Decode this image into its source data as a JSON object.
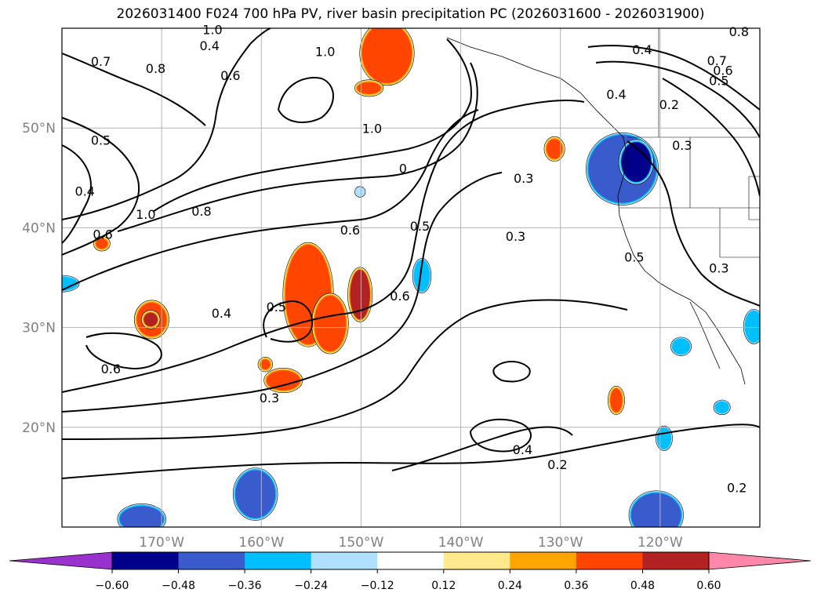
{
  "chart_data": {
    "type": "heatmap",
    "title": "2026031400 F024 700 hPa PV, river basin precipitation PC (2026031600 - 2026031900)",
    "lat_ticks": [
      "50°N",
      "40°N",
      "30°N",
      "20°N"
    ],
    "lat_values": [
      50,
      40,
      30,
      20
    ],
    "lon_ticks": [
      "170°W",
      "160°W",
      "150°W",
      "140°W",
      "130°W",
      "120°W"
    ],
    "lon_values": [
      -170,
      -160,
      -150,
      -140,
      -130,
      -120
    ],
    "extent": {
      "lon": [
        -180,
        -110
      ],
      "lat": [
        10,
        60
      ]
    },
    "grid": true,
    "colorbar": {
      "orientation": "horizontal",
      "extend": "both",
      "levels": [
        -0.6,
        -0.48,
        -0.36,
        -0.24,
        -0.12,
        0.12,
        0.24,
        0.36,
        0.48,
        0.6
      ],
      "tick_labels": [
        "−0.60",
        "−0.48",
        "−0.36",
        "−0.24",
        "−0.12",
        "0.12",
        "0.24",
        "0.36",
        "0.48",
        "0.60"
      ],
      "colors": [
        "#9932cc",
        "#00008b",
        "#3a5bcc",
        "#00bfff",
        "#b0e0ff",
        "#ffffff",
        "#ffe98c",
        "#ffa500",
        "#ff4500",
        "#b22222",
        "#ff88aa"
      ]
    },
    "contour_labels": [
      {
        "text": "0.7",
        "lon": -176.1,
        "lat": 56.6
      },
      {
        "text": "0.8",
        "lon": -170.6,
        "lat": 55.9
      },
      {
        "text": "0.4",
        "lon": -165.2,
        "lat": 58.2
      },
      {
        "text": "0.6",
        "lon": -163.1,
        "lat": 55.2
      },
      {
        "text": "1.0",
        "lon": -164.9,
        "lat": 59.8
      },
      {
        "text": "0.5",
        "lon": -176.1,
        "lat": 48.7
      },
      {
        "text": "0.4",
        "lon": -177.7,
        "lat": 43.6
      },
      {
        "text": "0.6",
        "lon": -175.9,
        "lat": 39.3
      },
      {
        "text": "1.0",
        "lon": -171.6,
        "lat": 41.3
      },
      {
        "text": "0.8",
        "lon": -166.0,
        "lat": 41.6
      },
      {
        "text": "1.0",
        "lon": -153.6,
        "lat": 57.6
      },
      {
        "text": "1.0",
        "lon": -148.9,
        "lat": 49.9
      },
      {
        "text": "0.",
        "lon": -145.6,
        "lat": 45.9
      },
      {
        "text": "0.6",
        "lon": -151.1,
        "lat": 39.7
      },
      {
        "text": "0.5",
        "lon": -144.1,
        "lat": 40.1
      },
      {
        "text": "0.6",
        "lon": -146.1,
        "lat": 33.1
      },
      {
        "text": "0.4",
        "lon": -164.0,
        "lat": 31.4
      },
      {
        "text": "0.5",
        "lon": -158.5,
        "lat": 32.0
      },
      {
        "text": "0.6",
        "lon": -175.1,
        "lat": 25.8
      },
      {
        "text": "0.3",
        "lon": -159.2,
        "lat": 22.9
      },
      {
        "text": "0.3",
        "lon": -133.7,
        "lat": 44.9
      },
      {
        "text": "0.3",
        "lon": -134.5,
        "lat": 39.1
      },
      {
        "text": "0.4",
        "lon": -133.8,
        "lat": 17.7
      },
      {
        "text": "0.2",
        "lon": -130.3,
        "lat": 16.2
      },
      {
        "text": "0.4",
        "lon": -121.8,
        "lat": 57.8
      },
      {
        "text": "0.4",
        "lon": -124.4,
        "lat": 53.3
      },
      {
        "text": "0.2",
        "lon": -119.1,
        "lat": 52.3
      },
      {
        "text": "0.7",
        "lon": -114.3,
        "lat": 56.7
      },
      {
        "text": "0.6",
        "lon": -113.7,
        "lat": 55.7
      },
      {
        "text": "0.5",
        "lon": -114.1,
        "lat": 54.7
      },
      {
        "text": "0.8",
        "lon": -112.1,
        "lat": 59.6
      },
      {
        "text": "0.3",
        "lon": -117.8,
        "lat": 48.2
      },
      {
        "text": "0.5",
        "lon": -122.6,
        "lat": 37.0
      },
      {
        "text": "0.3",
        "lon": -114.1,
        "lat": 35.9
      },
      {
        "text": "0.2",
        "lon": -112.3,
        "lat": 13.9
      }
    ],
    "precip_anomalies": [
      {
        "sign": "positive",
        "level": 0.36,
        "lon": -147.4,
        "lat": 57.5,
        "rx": 2.5,
        "ry": 3.0
      },
      {
        "sign": "positive",
        "level": 0.36,
        "lon": -149.2,
        "lat": 54.0,
        "rx": 1.2,
        "ry": 0.6
      },
      {
        "sign": "positive",
        "level": 0.36,
        "lon": -155.3,
        "lat": 33.3,
        "rx": 2.3,
        "ry": 5.0
      },
      {
        "sign": "positive",
        "level": 0.36,
        "lon": -153.1,
        "lat": 30.4,
        "rx": 1.6,
        "ry": 2.8
      },
      {
        "sign": "positive",
        "level": 0.48,
        "lon": -150.1,
        "lat": 33.3,
        "rx": 1.0,
        "ry": 2.5
      },
      {
        "sign": "positive",
        "level": 0.36,
        "lon": -171.0,
        "lat": 30.8,
        "rx": 1.5,
        "ry": 1.7
      },
      {
        "sign": "positive",
        "level": 0.48,
        "lon": -171.1,
        "lat": 30.8,
        "rx": 0.7,
        "ry": 0.7
      },
      {
        "sign": "positive",
        "level": 0.36,
        "lon": -157.8,
        "lat": 24.7,
        "rx": 1.7,
        "ry": 1.0
      },
      {
        "sign": "positive",
        "level": 0.36,
        "lon": -130.6,
        "lat": 47.9,
        "rx": 0.8,
        "ry": 1.0
      },
      {
        "sign": "positive",
        "level": 0.36,
        "lon": -124.4,
        "lat": 22.7,
        "rx": 0.6,
        "ry": 1.2
      },
      {
        "sign": "positive",
        "level": 0.36,
        "lon": -159.6,
        "lat": 26.3,
        "rx": 0.5,
        "ry": 0.5
      },
      {
        "sign": "positive",
        "level": 0.36,
        "lon": -176.0,
        "lat": 38.4,
        "rx": 0.6,
        "ry": 0.5
      },
      {
        "sign": "negative",
        "level": -0.48,
        "lon": -123.8,
        "lat": 45.9,
        "rx": 3.4,
        "ry": 3.4
      },
      {
        "sign": "negative",
        "level": -0.6,
        "lon": -122.4,
        "lat": 46.6,
        "rx": 1.5,
        "ry": 2.0
      },
      {
        "sign": "negative",
        "level": -0.48,
        "lon": -160.6,
        "lat": 13.3,
        "rx": 2.0,
        "ry": 2.4
      },
      {
        "sign": "negative",
        "level": -0.48,
        "lon": -172.0,
        "lat": 10.8,
        "rx": 2.2,
        "ry": 1.3
      },
      {
        "sign": "negative",
        "level": -0.48,
        "lon": -120.4,
        "lat": 11.2,
        "rx": 2.5,
        "ry": 2.2
      },
      {
        "sign": "negative",
        "level": -0.36,
        "lon": -143.9,
        "lat": 35.2,
        "rx": 0.7,
        "ry": 1.5
      },
      {
        "sign": "negative",
        "level": -0.36,
        "lon": -180.0,
        "lat": 34.4,
        "rx": 1.5,
        "ry": 0.6
      },
      {
        "sign": "negative",
        "level": -0.36,
        "lon": -110.6,
        "lat": 30.1,
        "rx": 0.8,
        "ry": 1.5
      },
      {
        "sign": "negative",
        "level": -0.36,
        "lon": -117.9,
        "lat": 28.1,
        "rx": 0.8,
        "ry": 0.7
      },
      {
        "sign": "negative",
        "level": -0.36,
        "lon": -113.8,
        "lat": 22.0,
        "rx": 0.6,
        "ry": 0.5
      },
      {
        "sign": "negative",
        "level": -0.36,
        "lon": -119.6,
        "lat": 18.9,
        "rx": 0.6,
        "ry": 1.0
      },
      {
        "sign": "negative",
        "level": -0.24,
        "lon": -150.1,
        "lat": 43.6,
        "rx": 0.3,
        "ry": 0.3
      }
    ]
  }
}
